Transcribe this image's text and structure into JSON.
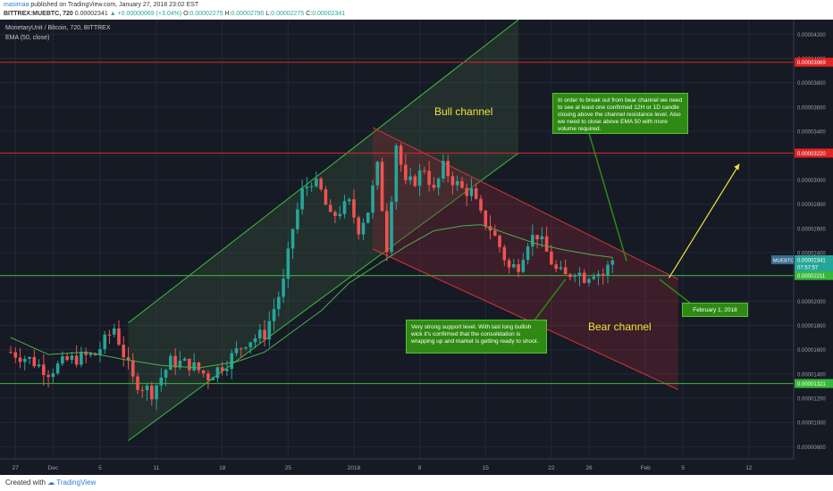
{
  "header": {
    "user": "masimaa",
    "published_text": "published on TradingView.com, January 27, 2018 23:02 EST",
    "symbol": "BITTREX:MUEBTC, 720",
    "last": "0.00002341",
    "change": "▲ +0.00000069 (+3.04%)",
    "o_label": "O:",
    "o_value": "0.00002275",
    "h_label": "H:",
    "h_value": "0.00002790",
    "l_label": "L:",
    "l_value": "0.00002275",
    "c_label": "C:",
    "c_value": "0.00002341"
  },
  "legend": {
    "title": "MonetaryUnit / Bitcoin, 720, BITTREX",
    "indicator": "EMA (50, close)"
  },
  "footer": {
    "created_with": "Created with",
    "brand": "TradingView"
  },
  "annotations": {
    "bull": "Bull channel",
    "bear": "Bear channel",
    "top_note": "In order to break out from bear channel we need to see at least one confirmed 12H or 1D candle closing above the channel resistance level.  Also we need to close above EMA 50 with more volume required.",
    "support_note": "Very strong support level. With last long bullish wick it's confirmed that the consolidation is wrapping up and market is getting ready to shoot.",
    "date_note": "February 1, 2018"
  },
  "colors": {
    "background": "#161a25",
    "up": "#26a69a",
    "down": "#ef5350",
    "ema": "#4caf50",
    "bull_channel": "#3cbf3c",
    "bear_channel": "#d9333a",
    "resistance": "#e02424",
    "support": "#38b838",
    "arrow": "#f2e33b",
    "note_bg": "#2f8a13"
  },
  "chart_data": {
    "type": "candlestick",
    "yaxis": {
      "min": 7e-06,
      "max": 4.32e-05,
      "ticks": [
        "0.00000800",
        "0.00001000",
        "0.00001200",
        "0.00001400",
        "0.00001600",
        "0.00001800",
        "0.00002000",
        "0.00002200",
        "0.00002400",
        "0.00002600",
        "0.00002800",
        "0.00003000",
        "0.00003200",
        "0.00003400",
        "0.00003600",
        "0.00003800",
        "0.00004000",
        "0.00004200"
      ]
    },
    "xaxis": {
      "ticks": [
        {
          "label": "27",
          "index": 1
        },
        {
          "label": "Dec",
          "index": 9
        },
        {
          "label": "5",
          "index": 19
        },
        {
          "label": "11",
          "index": 31
        },
        {
          "label": "18",
          "index": 45
        },
        {
          "label": "25",
          "index": 59
        },
        {
          "label": "2018",
          "index": 73
        },
        {
          "label": "8",
          "index": 87
        },
        {
          "label": "15",
          "index": 101
        },
        {
          "label": "22",
          "index": 115
        },
        {
          "label": "26",
          "index": 123
        },
        {
          "label": "Feb",
          "index": 135
        },
        {
          "label": "5",
          "index": 143
        },
        {
          "label": "12",
          "index": 157
        }
      ],
      "count": 170
    },
    "levels": [
      {
        "name": "resistance-1",
        "value": 3.969e-05,
        "label": "0.00003969",
        "color": "#e02424"
      },
      {
        "name": "resistance-2",
        "value": 3.22e-05,
        "label": "0.00003220",
        "color": "#e02424"
      },
      {
        "name": "support-1",
        "value": 2.211e-05,
        "label": "0.00002211",
        "color": "#38b838"
      },
      {
        "name": "support-2",
        "value": 1.321e-05,
        "label": "0.00001321",
        "color": "#38b838"
      }
    ],
    "price_tag": {
      "symbol": "MUEBTC",
      "value": 2.341e-05,
      "label": "0.00002341",
      "countdown": "07:57:57"
    },
    "series_ohlc_anchors": [
      [
        0,
        1.58e-05
      ],
      [
        4,
        1.52e-05
      ],
      [
        8,
        1.42e-05
      ],
      [
        12,
        1.51e-05
      ],
      [
        18,
        1.56e-05
      ],
      [
        22,
        1.78e-05
      ],
      [
        26,
        1.35e-05
      ],
      [
        30,
        1.25e-05
      ],
      [
        34,
        1.5e-05
      ],
      [
        38,
        1.48e-05
      ],
      [
        42,
        1.38e-05
      ],
      [
        46,
        1.5e-05
      ],
      [
        50,
        1.67e-05
      ],
      [
        54,
        1.73e-05
      ],
      [
        58,
        2.15e-05
      ],
      [
        60,
        2.6e-05
      ],
      [
        62,
        2.9e-05
      ],
      [
        64,
        3e-05
      ],
      [
        66,
        2.9e-05
      ],
      [
        68,
        2.68e-05
      ],
      [
        70,
        2.75e-05
      ],
      [
        72,
        2.8e-05
      ],
      [
        74,
        2.6e-05
      ],
      [
        76,
        2.75e-05
      ],
      [
        78,
        3.1e-05
      ],
      [
        80,
        2.45e-05
      ],
      [
        82,
        3.3e-05
      ],
      [
        84,
        2.95e-05
      ],
      [
        86,
        3e-05
      ],
      [
        88,
        3.1e-05
      ],
      [
        90,
        2.9e-05
      ],
      [
        92,
        3.1e-05
      ],
      [
        94,
        3e-05
      ],
      [
        96,
        2.92e-05
      ],
      [
        98,
        2.9e-05
      ],
      [
        100,
        2.7e-05
      ],
      [
        102,
        2.6e-05
      ],
      [
        104,
        2.45e-05
      ],
      [
        106,
        2.27e-05
      ],
      [
        108,
        2.3e-05
      ],
      [
        110,
        2.5e-05
      ],
      [
        112,
        2.55e-05
      ],
      [
        114,
        2.4e-05
      ],
      [
        116,
        2.25e-05
      ],
      [
        118,
        2.2e-05
      ],
      [
        120,
        2.26e-05
      ],
      [
        122,
        2.2e-05
      ],
      [
        124,
        2.25e-05
      ],
      [
        126,
        2.22e-05
      ],
      [
        128,
        2.34e-05
      ]
    ],
    "ema_anchors": [
      [
        0,
        1.7e-05
      ],
      [
        8,
        1.56e-05
      ],
      [
        16,
        1.58e-05
      ],
      [
        24,
        1.52e-05
      ],
      [
        32,
        1.47e-05
      ],
      [
        40,
        1.45e-05
      ],
      [
        48,
        1.5e-05
      ],
      [
        54,
        1.58e-05
      ],
      [
        60,
        1.75e-05
      ],
      [
        66,
        1.92e-05
      ],
      [
        72,
        2.15e-05
      ],
      [
        78,
        2.3e-05
      ],
      [
        84,
        2.45e-05
      ],
      [
        90,
        2.58e-05
      ],
      [
        96,
        2.62e-05
      ],
      [
        100,
        2.63e-05
      ],
      [
        106,
        2.55e-05
      ],
      [
        112,
        2.47e-05
      ],
      [
        118,
        2.42e-05
      ],
      [
        124,
        2.38e-05
      ],
      [
        128,
        2.36e-05
      ]
    ]
  }
}
